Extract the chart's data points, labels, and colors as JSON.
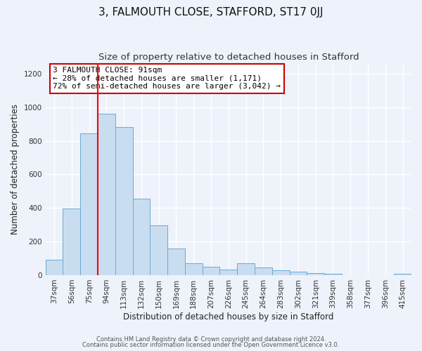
{
  "title": "3, FALMOUTH CLOSE, STAFFORD, ST17 0JJ",
  "subtitle": "Size of property relative to detached houses in Stafford",
  "xlabel": "Distribution of detached houses by size in Stafford",
  "ylabel": "Number of detached properties",
  "bar_labels": [
    "37sqm",
    "56sqm",
    "75sqm",
    "94sqm",
    "113sqm",
    "132sqm",
    "150sqm",
    "169sqm",
    "188sqm",
    "207sqm",
    "226sqm",
    "245sqm",
    "264sqm",
    "283sqm",
    "302sqm",
    "321sqm",
    "339sqm",
    "358sqm",
    "377sqm",
    "396sqm",
    "415sqm"
  ],
  "bar_values": [
    90,
    395,
    845,
    960,
    880,
    455,
    295,
    160,
    70,
    50,
    35,
    70,
    45,
    28,
    20,
    12,
    10,
    0,
    0,
    0,
    8
  ],
  "bar_color": "#c9ddf0",
  "bar_edge_color": "#6aaad4",
  "red_line_index": 3,
  "annotation_line1": "3 FALMOUTH CLOSE: 91sqm",
  "annotation_line2": "← 28% of detached houses are smaller (1,171)",
  "annotation_line3": "72% of semi-detached houses are larger (3,042) →",
  "annotation_box_facecolor": "#ffffff",
  "annotation_box_edgecolor": "#cc0000",
  "ylim": [
    0,
    1260
  ],
  "footer1": "Contains HM Land Registry data © Crown copyright and database right 2024.",
  "footer2": "Contains public sector information licensed under the Open Government Licence v3.0.",
  "bg_color": "#eef2fa",
  "grid_color": "#ffffff",
  "title_fontsize": 11,
  "subtitle_fontsize": 9.5,
  "axis_label_fontsize": 8.5,
  "tick_fontsize": 7.5,
  "footer_fontsize": 6.0
}
